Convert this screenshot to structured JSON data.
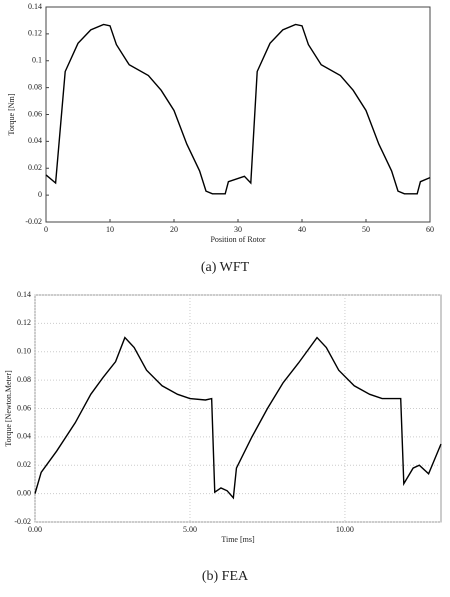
{
  "chart_data": [
    {
      "type": "line",
      "caption": "(a)  WFT",
      "xlabel": "Position of Rotor",
      "ylabel": "Torque [Nm]",
      "xlim": [
        0,
        60
      ],
      "xticks": [
        0,
        10,
        20,
        30,
        40,
        50,
        60
      ],
      "ylim": [
        -0.02,
        0.14
      ],
      "yticks": [
        -0.02,
        0,
        0.02,
        0.04,
        0.06,
        0.08,
        0.1,
        0.12,
        0.14
      ],
      "grid": false,
      "series": [
        {
          "color": "#000000",
          "x": [
            0,
            1.5,
            3,
            5,
            7,
            9,
            10,
            11,
            13,
            16,
            18,
            20,
            22,
            24,
            25,
            26,
            28,
            28.5,
            31,
            32,
            33,
            35,
            37,
            39,
            40,
            41,
            43,
            46,
            48,
            50,
            52,
            54,
            55,
            56,
            58,
            58.5,
            60
          ],
          "values": [
            0.015,
            0.009,
            0.092,
            0.113,
            0.123,
            0.127,
            0.126,
            0.112,
            0.097,
            0.089,
            0.078,
            0.063,
            0.038,
            0.018,
            0.003,
            0.001,
            0.001,
            0.01,
            0.014,
            0.009,
            0.092,
            0.113,
            0.123,
            0.127,
            0.126,
            0.112,
            0.097,
            0.089,
            0.078,
            0.063,
            0.038,
            0.018,
            0.003,
            0.001,
            0.001,
            0.01,
            0.013
          ]
        }
      ]
    },
    {
      "type": "line",
      "caption": "(b)  FEA",
      "xlabel": "Time [ms]",
      "ylabel": "Torque [Newton.Meter]",
      "xlim": [
        0,
        13.1
      ],
      "xticks": [
        {
          "value": 0,
          "label": "0.00"
        },
        {
          "value": 5,
          "label": "5.00"
        },
        {
          "value": 10,
          "label": "10.00"
        }
      ],
      "ylim": [
        -0.02,
        0.14
      ],
      "yticks": [
        -0.02,
        {
          "value": 0,
          "label": "0.00"
        },
        0.02,
        0.04,
        0.06,
        0.08,
        {
          "value": 0.1,
          "label": "0.10"
        },
        0.12,
        0.14
      ],
      "grid": true,
      "series": [
        {
          "color": "#000000",
          "x": [
            0,
            0.2,
            0.7,
            1.3,
            1.8,
            2.2,
            2.6,
            2.9,
            3.2,
            3.6,
            4.1,
            4.6,
            5,
            5.5,
            5.7,
            5.8,
            6.0,
            6.2,
            6.4,
            6.5,
            7,
            7.5,
            8,
            8.5,
            9.1,
            9.4,
            9.8,
            10.3,
            10.8,
            11.2,
            11.8,
            11.9,
            12.2,
            12.4,
            12.7,
            13.1
          ],
          "values": [
            0,
            0.015,
            0.03,
            0.05,
            0.07,
            0.082,
            0.093,
            0.11,
            0.103,
            0.087,
            0.076,
            0.07,
            0.067,
            0.066,
            0.067,
            0.001,
            0.004,
            0.002,
            -0.003,
            0.018,
            0.04,
            0.06,
            0.078,
            0.092,
            0.11,
            0.103,
            0.087,
            0.076,
            0.07,
            0.067,
            0.067,
            0.007,
            0.018,
            0.02,
            0.014,
            0.035
          ]
        }
      ]
    }
  ]
}
